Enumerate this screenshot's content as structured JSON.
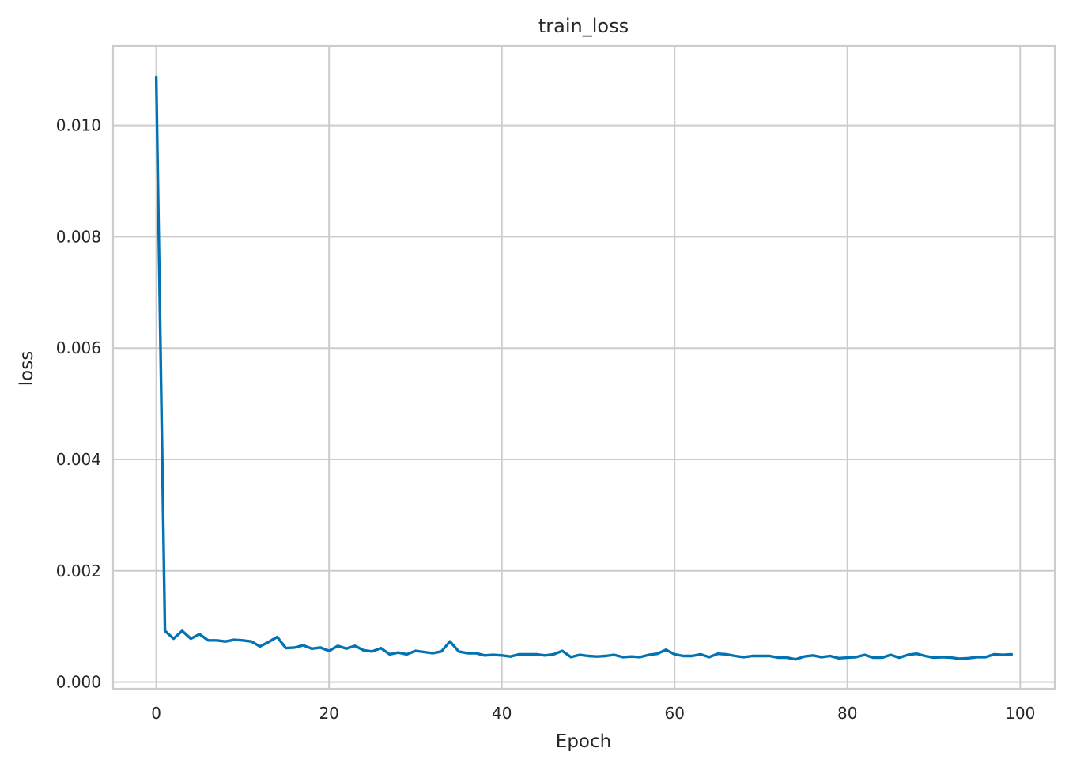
{
  "chart_data": {
    "type": "line",
    "title": "train_loss",
    "xlabel": "Epoch",
    "ylabel": "loss",
    "xlim": [
      -5,
      104
    ],
    "ylim": [
      -0.00012,
      0.01143
    ],
    "x_ticks": [
      0,
      20,
      40,
      60,
      80,
      100
    ],
    "y_ticks": [
      0.0,
      0.002,
      0.004,
      0.006,
      0.008,
      0.01
    ],
    "x_tick_labels": [
      "0",
      "20",
      "40",
      "60",
      "80",
      "100"
    ],
    "y_tick_labels": [
      "0.000",
      "0.002",
      "0.004",
      "0.006",
      "0.008",
      "0.010"
    ],
    "grid": true,
    "series_color": "#0173b2",
    "series": [
      {
        "x": [
          0,
          1,
          2,
          3,
          4,
          5,
          6,
          7,
          8,
          9,
          10,
          11,
          12,
          13,
          14,
          15,
          16,
          17,
          18,
          19,
          20,
          21,
          22,
          23,
          24,
          25,
          26,
          27,
          28,
          29,
          30,
          31,
          32,
          33,
          34,
          35,
          36,
          37,
          38,
          39,
          40,
          41,
          42,
          43,
          44,
          45,
          46,
          47,
          48,
          49,
          50,
          51,
          52,
          53,
          54,
          55,
          56,
          57,
          58,
          59,
          60,
          61,
          62,
          63,
          64,
          65,
          66,
          67,
          68,
          69,
          70,
          71,
          72,
          73,
          74,
          75,
          76,
          77,
          78,
          79,
          80,
          81,
          82,
          83,
          84,
          85,
          86,
          87,
          88,
          89,
          90,
          91,
          92,
          93,
          94,
          95,
          96,
          97,
          98,
          99
        ],
        "values": [
          0.01087,
          0.00092,
          0.00078,
          0.00092,
          0.00078,
          0.00086,
          0.00075,
          0.00075,
          0.00073,
          0.00076,
          0.00075,
          0.00073,
          0.00064,
          0.00072,
          0.00081,
          0.00061,
          0.00062,
          0.00066,
          0.0006,
          0.00062,
          0.00056,
          0.00065,
          0.0006,
          0.00065,
          0.00057,
          0.00055,
          0.00061,
          0.0005,
          0.00053,
          0.0005,
          0.00056,
          0.00054,
          0.00052,
          0.00055,
          0.00073,
          0.00055,
          0.00052,
          0.00052,
          0.00048,
          0.00049,
          0.00048,
          0.00046,
          0.0005,
          0.0005,
          0.0005,
          0.00048,
          0.0005,
          0.00056,
          0.00045,
          0.00049,
          0.00047,
          0.00046,
          0.00047,
          0.00049,
          0.00045,
          0.00046,
          0.00045,
          0.00049,
          0.00051,
          0.00058,
          0.0005,
          0.00047,
          0.00047,
          0.0005,
          0.00045,
          0.00051,
          0.0005,
          0.00047,
          0.00045,
          0.00047,
          0.00047,
          0.00047,
          0.00044,
          0.00044,
          0.00041,
          0.00046,
          0.00048,
          0.00045,
          0.00047,
          0.00043,
          0.00044,
          0.00045,
          0.00049,
          0.00044,
          0.00044,
          0.00049,
          0.00044,
          0.00049,
          0.00051,
          0.00047,
          0.00044,
          0.00045,
          0.00044,
          0.00042,
          0.00043,
          0.00045,
          0.00045,
          0.0005,
          0.00049,
          0.0005
        ]
      }
    ]
  }
}
